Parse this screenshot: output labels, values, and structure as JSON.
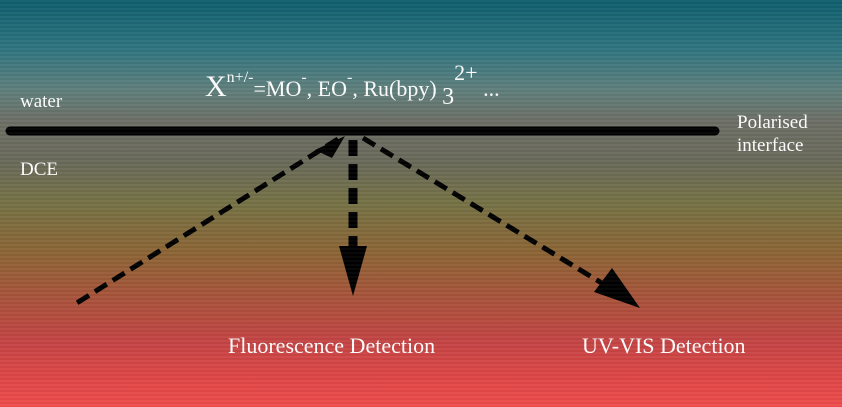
{
  "formula": {
    "X": "X",
    "charge": "n+/-",
    "mid": "=MO",
    "minus1": "-",
    "sep1": ", EO",
    "minus2": "-",
    "sep2": ", Ru(bpy)",
    "sub": "3",
    "sup": "2+",
    "tail": "..."
  },
  "phases": {
    "top": "water",
    "bottom": "DCE"
  },
  "interface": {
    "line1": "Polarised",
    "line2": "interface"
  },
  "detectors": {
    "fluorescence": "Fluorescence Detection",
    "uvvis": "UV-VIS Detection"
  },
  "colors": {
    "line": "#000000",
    "text": "#ffffff"
  }
}
